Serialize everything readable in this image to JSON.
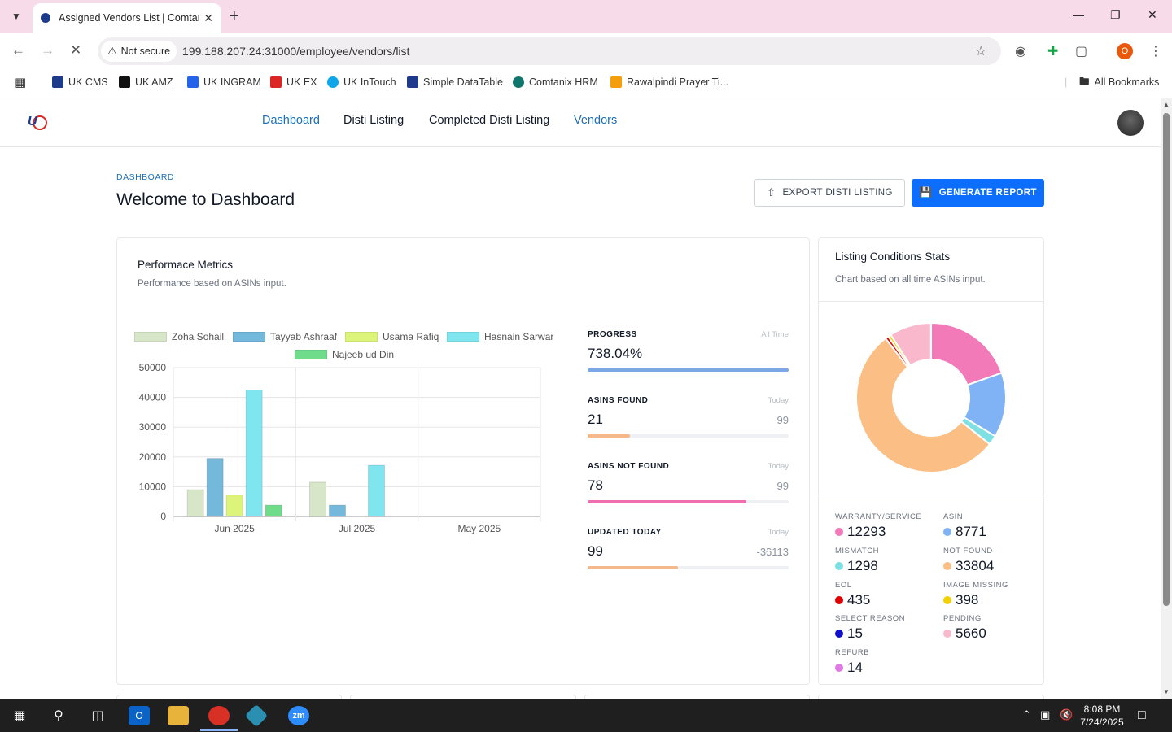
{
  "browser": {
    "tab_title": "Assigned Vendors List | Comtan",
    "security_label": "Not secure",
    "url": "199.188.207.24:31000/employee/vendors/list",
    "profile_initial": "O",
    "bookmarks": [
      {
        "label": "UK CMS",
        "color": "#1e3a8a"
      },
      {
        "label": "UK AMZ",
        "color": "#111111"
      },
      {
        "label": "UK INGRAM",
        "color": "#2563eb"
      },
      {
        "label": "UK EX",
        "color": "#dc2626"
      },
      {
        "label": "UK InTouch",
        "color": "#0ea5e9"
      },
      {
        "label": "Simple DataTable",
        "color": "#1e3a8a"
      },
      {
        "label": "Comtanix HRM",
        "color": "#0f766e"
      },
      {
        "label": "Rawalpindi Prayer Ti...",
        "color": "#f59e0b"
      }
    ],
    "all_bookmarks": "All Bookmarks"
  },
  "nav": {
    "links": [
      "Dashboard",
      "Disti Listing",
      "Completed Disti Listing",
      "Vendors"
    ]
  },
  "header": {
    "breadcrumb": "DASHBOARD",
    "title": "Welcome to Dashboard",
    "export_label": "EXPORT DISTI LISTING",
    "report_label": "GENERATE REPORT"
  },
  "performance": {
    "title": "Performace Metrics",
    "subtitle": "Performance based on ASINs input.",
    "metrics": [
      {
        "label": "PROGRESS",
        "hint": "All Time",
        "value": "738.04%",
        "side": "",
        "fill": 1.0,
        "color": "#7ba7e6"
      },
      {
        "label": "ASINS FOUND",
        "hint": "Today",
        "value": "21",
        "side": "99",
        "fill": 0.21,
        "color": "#f4b88a"
      },
      {
        "label": "ASINS NOT FOUND",
        "hint": "Today",
        "value": "78",
        "side": "99",
        "fill": 0.79,
        "color": "#ef6fae"
      },
      {
        "label": "UPDATED TODAY",
        "hint": "Today",
        "value": "99",
        "side": "-36113",
        "fill": 0.45,
        "color": "#f4b88a"
      }
    ]
  },
  "chart_data": {
    "type": "bar",
    "categories": [
      "Jun 2025",
      "Jul 2025",
      "May 2025"
    ],
    "ylim": [
      0,
      50000
    ],
    "yticks": [
      "0",
      "10000",
      "20000",
      "30000",
      "40000",
      "50000"
    ],
    "series": [
      {
        "name": "Zoha Sohail",
        "color": "#d7e6c8",
        "values": [
          9000,
          11500,
          0
        ]
      },
      {
        "name": "Tayyab Ashraaf",
        "color": "#74b8dc",
        "values": [
          19500,
          3800,
          0
        ]
      },
      {
        "name": "Usama Rafiq",
        "color": "#dcf47a",
        "values": [
          7200,
          0,
          0
        ]
      },
      {
        "name": "Hasnain Sarwar",
        "color": "#7fe5ef",
        "values": [
          42500,
          17200,
          0
        ]
      },
      {
        "name": "Najeeb ud Din",
        "color": "#6fdc8c",
        "values": [
          3800,
          0,
          0
        ]
      }
    ]
  },
  "stats": {
    "title": "Listing Conditions Stats",
    "subtitle": "Chart based on all time ASINs input.",
    "items": [
      {
        "label": "WARRANTY/SERVICE",
        "value": "12293",
        "color": "#f27ab8"
      },
      {
        "label": "ASIN",
        "value": "8771",
        "color": "#7fb3f5"
      },
      {
        "label": "MISMATCH",
        "value": "1298",
        "color": "#7fe0e4"
      },
      {
        "label": "NOT FOUND",
        "value": "33804",
        "color": "#fbbf85"
      },
      {
        "label": "EOL",
        "value": "435",
        "color": "#e00000"
      },
      {
        "label": "IMAGE MISSING",
        "value": "398",
        "color": "#f5d000"
      },
      {
        "label": "SELECT REASON",
        "value": "15",
        "color": "#1010c8"
      },
      {
        "label": "PENDING",
        "value": "5660",
        "color": "#f9b8cc"
      },
      {
        "label": "REFURB",
        "value": "14",
        "color": "#e07ae6"
      }
    ],
    "donut": [
      {
        "value": 12293,
        "color": "#f27ab8"
      },
      {
        "value": 8771,
        "color": "#7fb3f5"
      },
      {
        "value": 1298,
        "color": "#7fe0e4"
      },
      {
        "value": 33804,
        "color": "#fbbf85"
      },
      {
        "value": 435,
        "color": "#e00000"
      },
      {
        "value": 398,
        "color": "#f5d000"
      },
      {
        "value": 15,
        "color": "#1010c8"
      },
      {
        "value": 5660,
        "color": "#f9b8cc"
      },
      {
        "value": 14,
        "color": "#e07ae6"
      }
    ]
  },
  "taskbar": {
    "time": "8:08 PM",
    "date": "7/24/2025"
  }
}
